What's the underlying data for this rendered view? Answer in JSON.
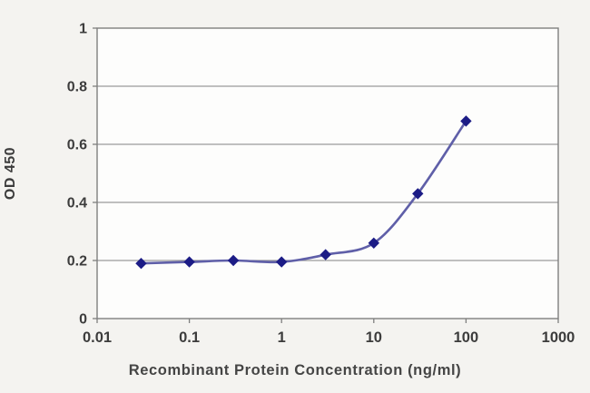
{
  "chart_data": {
    "type": "line",
    "title": "",
    "xlabel": "Recombinant Protein Concentration (ng/ml)",
    "ylabel": "OD 450",
    "x_scale": "log",
    "xlim": [
      0.01,
      1000
    ],
    "ylim": [
      0,
      1
    ],
    "x": [
      0.03,
      0.1,
      0.3,
      1,
      3,
      10,
      30,
      100
    ],
    "series": [
      {
        "name": "OD 450",
        "values": [
          0.19,
          0.195,
          0.2,
          0.195,
          0.22,
          0.26,
          0.43,
          0.68
        ]
      }
    ],
    "x_ticks": [
      "0.01",
      "0.1",
      "1",
      "10",
      "100",
      "1000"
    ],
    "x_tick_values": [
      0.01,
      0.1,
      1,
      10,
      100,
      1000
    ],
    "y_ticks": [
      "0",
      "0.2",
      "0.4",
      "0.6",
      "0.8",
      "1"
    ],
    "y_tick_values": [
      0,
      0.2,
      0.4,
      0.6,
      0.8,
      1
    ],
    "grid": "horizontal",
    "legend": "none",
    "marker": "diamond",
    "colors": {
      "line": "#5f5fa8",
      "marker": "#1c1c86",
      "grid": "#9a9a9a",
      "frame": "#7f7f7f",
      "tick_text": "#3c3c3c",
      "plot_bg": "#fdfdfc",
      "page_bg": "#f4f3f0"
    }
  }
}
